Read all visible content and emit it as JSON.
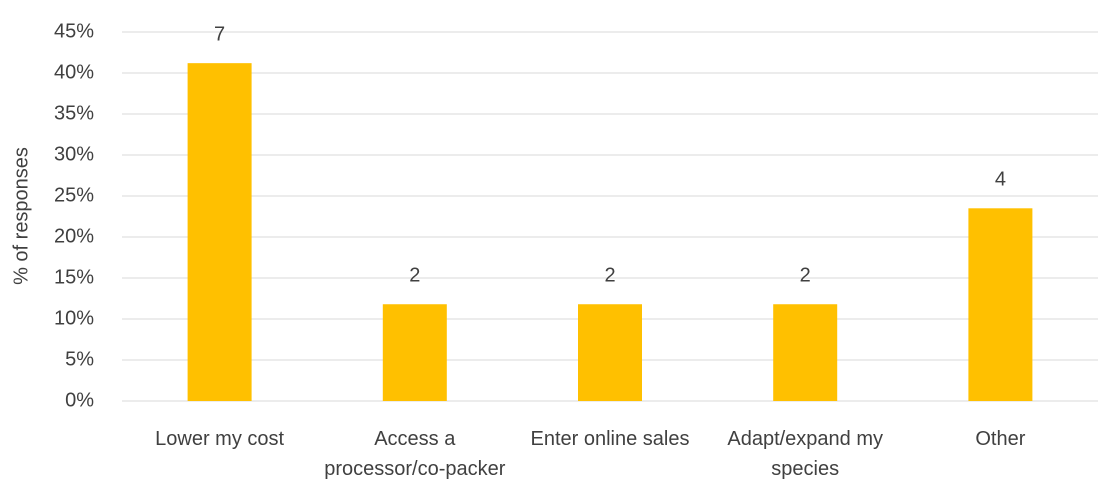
{
  "chart_data": {
    "type": "bar",
    "y_label": "% of responses",
    "categories": [
      "Lower my cost",
      "Access a processor/co-packer",
      "Enter online sales",
      "Adapt/expand my species",
      "Other"
    ],
    "values": [
      41.2,
      11.8,
      11.8,
      11.8,
      23.5
    ],
    "counts": [
      7,
      2,
      2,
      2,
      4
    ],
    "color": "#ffc000",
    "ylim": [
      0,
      45
    ],
    "yticks": [
      {
        "value": 0,
        "label": "0%"
      },
      {
        "value": 5,
        "label": "5%"
      },
      {
        "value": 10,
        "label": "10%"
      },
      {
        "value": 15,
        "label": "15%"
      },
      {
        "value": 20,
        "label": "20%"
      },
      {
        "value": 25,
        "label": "25%"
      },
      {
        "value": 30,
        "label": "30%"
      },
      {
        "value": 35,
        "label": "35%"
      },
      {
        "value": 40,
        "label": "40%"
      },
      {
        "value": 45,
        "label": "45%"
      }
    ],
    "grid": true
  }
}
